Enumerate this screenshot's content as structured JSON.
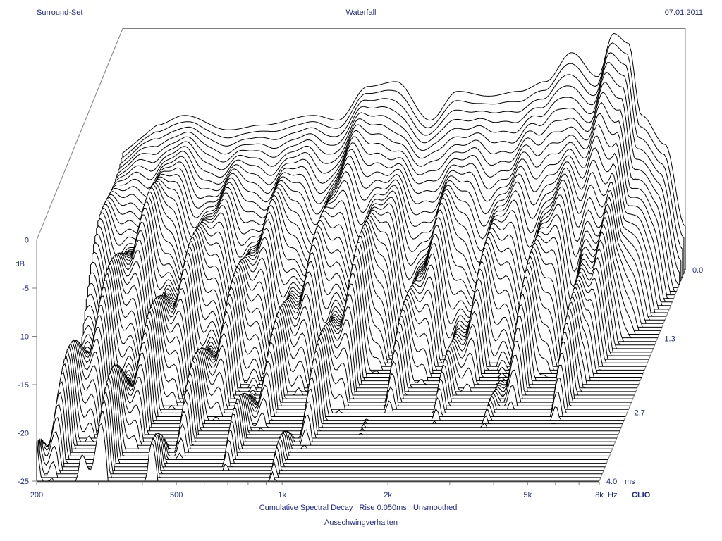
{
  "header": {
    "left": "Surround-Set",
    "center": "Waterfall",
    "right": "07.01.2011"
  },
  "footer": {
    "line1": "Cumulative Spectral Decay   Rise 0.050ms   Unsmoothed",
    "line2": "Ausschwingverhalten"
  },
  "colors": {
    "label": "#1f2a8c",
    "trace": "#000000",
    "fill": "#ffffff",
    "frame": "#808080"
  },
  "chart_data": {
    "type": "waterfall",
    "title": "Waterfall",
    "x_scale": "log",
    "xlim": [
      200,
      8000
    ],
    "ylim": [
      -25,
      0
    ],
    "zlim": [
      0.0,
      4.0
    ],
    "ylabel": "dB",
    "x_unit": "Hz",
    "z_unit": "ms",
    "x_ticks": [
      {
        "value": 200,
        "label": "200"
      },
      {
        "value": 500,
        "label": "500"
      },
      {
        "value": 1000,
        "label": "1k"
      },
      {
        "value": 2000,
        "label": "2k"
      },
      {
        "value": 5000,
        "label": "5k"
      },
      {
        "value": 8000,
        "label": "8k"
      }
    ],
    "x_unit_label": "Hz",
    "y_ticks": [
      {
        "value": 0,
        "label": "0"
      },
      {
        "value": -5,
        "label": "-5"
      },
      {
        "value": -10,
        "label": "-10"
      },
      {
        "value": -15,
        "label": "-15"
      },
      {
        "value": -20,
        "label": "-20"
      },
      {
        "value": -25,
        "label": "-25"
      }
    ],
    "z_ticks": [
      {
        "value": 0.0,
        "label": "0.0"
      },
      {
        "value": 1.3,
        "label": "1.3"
      },
      {
        "value": 2.7,
        "label": "2.7"
      },
      {
        "value": 4.0,
        "label": "4.0"
      }
    ],
    "z_unit_label": "ms",
    "brand": "CLIO",
    "slices": 60,
    "initial_response": [
      {
        "f": 250,
        "db": -10.0
      },
      {
        "f": 300,
        "db": -9.0
      },
      {
        "f": 400,
        "db": -10.5
      },
      {
        "f": 500,
        "db": -10.0
      },
      {
        "f": 700,
        "db": -9.0
      },
      {
        "f": 820,
        "db": -9.5
      },
      {
        "f": 1000,
        "db": -6.0
      },
      {
        "f": 1200,
        "db": -5.5
      },
      {
        "f": 1500,
        "db": -9.5
      },
      {
        "f": 1800,
        "db": -6.5
      },
      {
        "f": 2200,
        "db": -7.0
      },
      {
        "f": 2700,
        "db": -6.5
      },
      {
        "f": 3200,
        "db": -5.5
      },
      {
        "f": 3800,
        "db": -2.5
      },
      {
        "f": 4500,
        "db": -5.0
      },
      {
        "f": 5000,
        "db": -0.5
      },
      {
        "f": 5500,
        "db": -1.5
      },
      {
        "f": 6000,
        "db": -9.0
      },
      {
        "f": 7000,
        "db": -12.0
      },
      {
        "f": 8000,
        "db": -20.5
      }
    ]
  }
}
